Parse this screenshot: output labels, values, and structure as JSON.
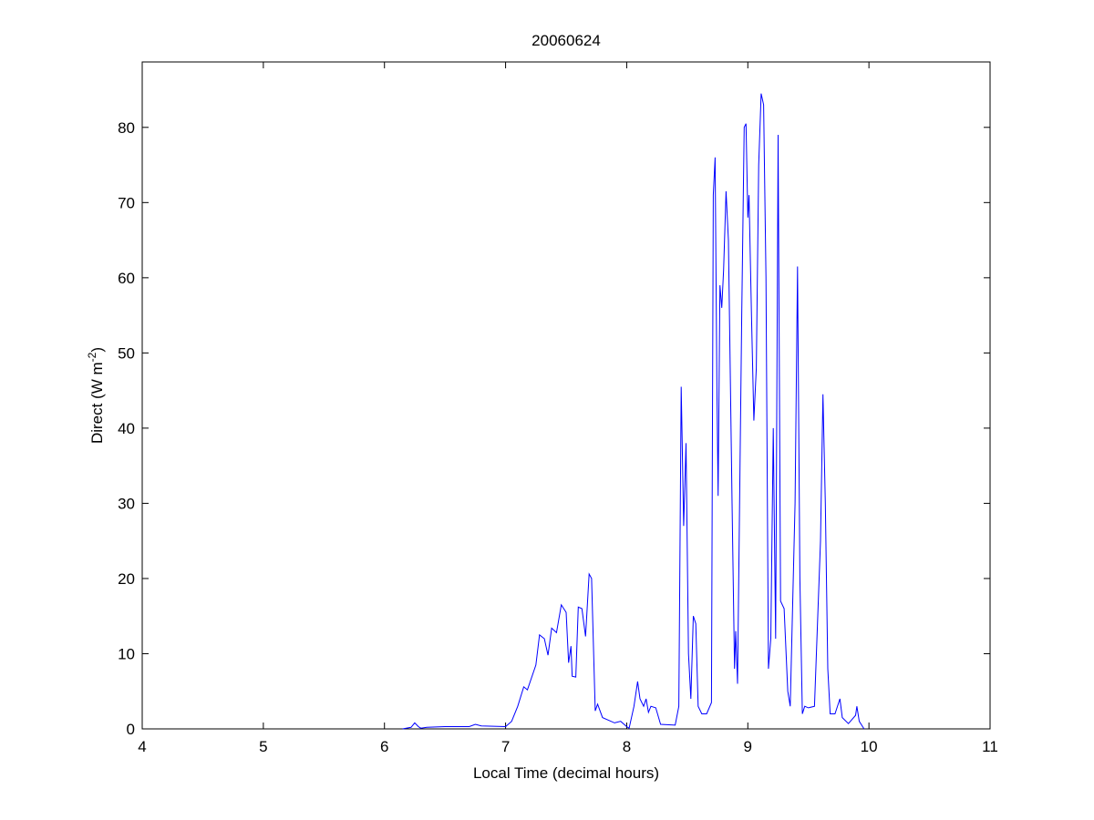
{
  "chart_data": {
    "type": "line",
    "title": "20060624",
    "xlabel": "Local Time (decimal hours)",
    "ylabel_main": "Direct (W m",
    "ylabel_sup": "-2",
    "ylabel_end": ")",
    "xlim": [
      4,
      11
    ],
    "ylim": [
      0,
      88.7
    ],
    "xticks": [
      4,
      5,
      6,
      7,
      8,
      9,
      10,
      11
    ],
    "yticks": [
      0,
      10,
      20,
      30,
      40,
      50,
      60,
      70,
      80
    ],
    "grid": false,
    "line_color": "#0000ff",
    "series": [
      {
        "x": [
          6.15,
          6.22,
          6.25,
          6.28,
          6.3,
          6.35,
          6.5,
          6.7,
          6.75,
          6.8,
          7.0,
          7.05,
          7.1,
          7.15,
          7.18,
          7.25,
          7.28,
          7.32,
          7.35,
          7.38,
          7.42,
          7.46,
          7.5,
          7.52,
          7.54,
          7.55,
          7.58,
          7.6,
          7.63,
          7.66,
          7.69,
          7.71,
          7.74,
          7.76,
          7.8,
          7.9,
          7.95,
          8.0,
          8.02,
          8.06,
          8.09,
          8.11,
          8.14,
          8.16,
          8.18,
          8.2,
          8.24,
          8.28,
          8.4,
          8.43,
          8.45,
          8.47,
          8.49,
          8.51,
          8.53,
          8.55,
          8.57,
          8.59,
          8.62,
          8.66,
          8.7,
          8.715,
          8.73,
          8.745,
          8.755,
          8.77,
          8.785,
          8.8,
          8.82,
          8.84,
          8.87,
          8.89,
          8.9,
          8.915,
          8.95,
          8.97,
          8.985,
          9.0,
          9.01,
          9.03,
          9.05,
          9.07,
          9.09,
          9.11,
          9.13,
          9.15,
          9.17,
          9.19,
          9.21,
          9.23,
          9.25,
          9.27,
          9.3,
          9.33,
          9.35,
          9.39,
          9.41,
          9.43,
          9.45,
          9.47,
          9.5,
          9.55,
          9.6,
          9.62,
          9.64,
          9.66,
          9.68,
          9.72,
          9.76,
          9.78,
          9.83,
          9.89,
          9.9,
          9.92,
          9.96
        ],
        "y": [
          0,
          0.2,
          0.8,
          0.3,
          0.1,
          0.2,
          0.3,
          0.3,
          0.6,
          0.4,
          0.3,
          1,
          3,
          5.6,
          5.2,
          8.5,
          12.5,
          12,
          9.8,
          13.4,
          12.8,
          16.5,
          15.5,
          8.8,
          11,
          7,
          6.9,
          16.2,
          16,
          12.3,
          20.6,
          20,
          2.4,
          3.3,
          1.5,
          0.8,
          1,
          0.3,
          0.1,
          3,
          6.3,
          4,
          3,
          4,
          2.2,
          3,
          2.8,
          0.6,
          0.5,
          3,
          45.5,
          27,
          38,
          10,
          4,
          15,
          14,
          3,
          2,
          2,
          3.5,
          71,
          76,
          45,
          31,
          59,
          56,
          61,
          71.5,
          65,
          30,
          8,
          13,
          6,
          55,
          80,
          80.5,
          68,
          71,
          55,
          41,
          48,
          75,
          84.5,
          83,
          60,
          8,
          12,
          40,
          12,
          79,
          17,
          16,
          5,
          3,
          30,
          61.5,
          20,
          2,
          3,
          2.8,
          3,
          25,
          44.5,
          30,
          8,
          2,
          2,
          4,
          1.5,
          0.7,
          1.8,
          3,
          1,
          0
        ]
      }
    ]
  }
}
